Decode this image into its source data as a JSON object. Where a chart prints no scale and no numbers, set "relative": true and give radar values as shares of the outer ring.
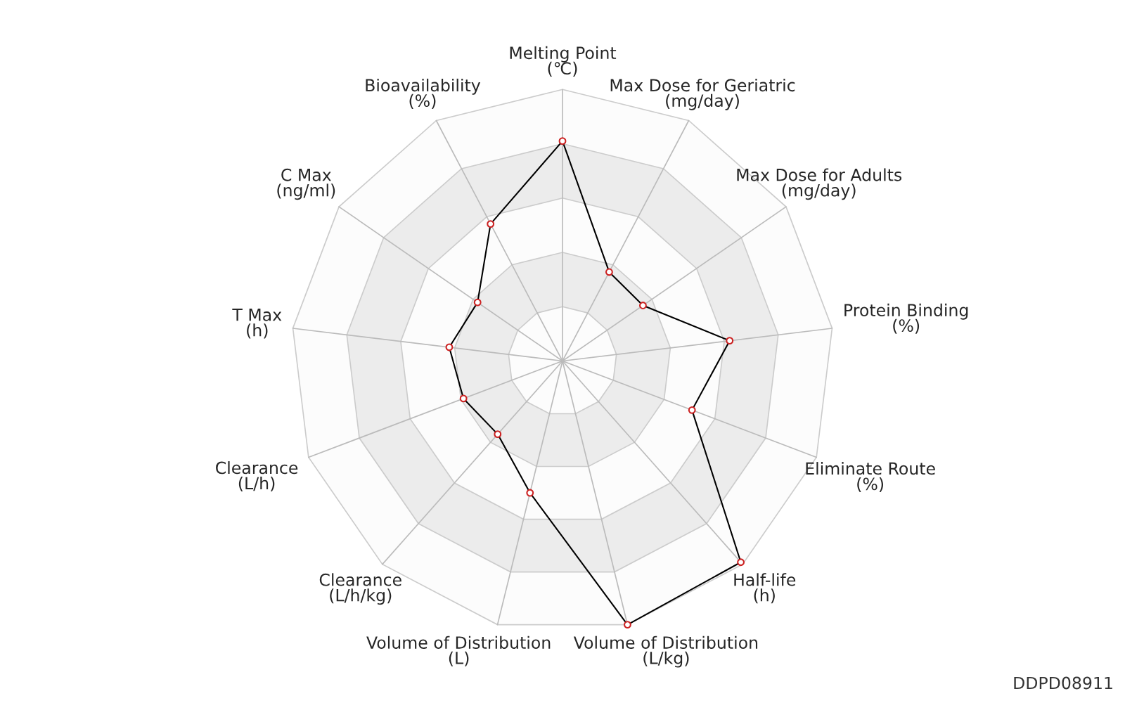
{
  "chart_data": {
    "type": "radar",
    "relative": true,
    "grid": true,
    "marker": "circle",
    "line_style": "solid",
    "categories": [
      "Melting Point\n(℃)",
      "Max Dose for Geriatric\n(mg/day)",
      "Max Dose for Adults\n(mg/day)",
      "Protein Binding\n(%)",
      "Eliminate Route\n(%)",
      "Half-life\n(h)",
      "Volume of Distribution\n(L/kg)",
      "Volume of Distribution\n(L)",
      "Clearance\n(L/h/kg)",
      "Clearance\n(L/h)",
      "T Max\n(h)",
      "C Max\n(ng/ml)",
      "Bioavailability\n(%)"
    ],
    "series": [
      {
        "color": "#000000",
        "values": [
          0.81,
          0.37,
          0.36,
          0.62,
          0.51,
          0.99,
          1.0,
          0.5,
          0.36,
          0.39,
          0.42,
          0.38,
          0.57
        ]
      }
    ],
    "annotations": [
      "DDPD08911"
    ]
  }
}
